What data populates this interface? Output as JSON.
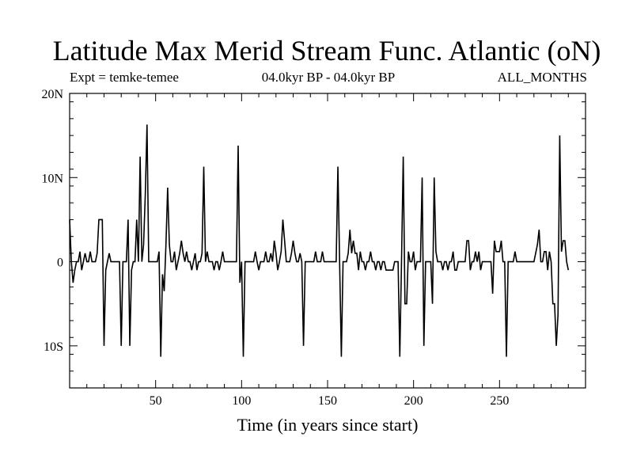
{
  "chart_data": {
    "type": "line",
    "title": "Latitude Max Merid Stream Func. Atlantic (oN)",
    "subtitle_left": "Expt = temke-temee",
    "subtitle_center": "04.0kyr BP - 04.0kyr BP",
    "subtitle_right": "ALL_MONTHS",
    "xlabel": "Time (in years since start)",
    "ylabel": "",
    "xlim": [
      0,
      300
    ],
    "ylim": [
      -15,
      20
    ],
    "grid": false,
    "x_ticks": [
      {
        "value": 50,
        "label": "50"
      },
      {
        "value": 100,
        "label": "100"
      },
      {
        "value": 150,
        "label": "150"
      },
      {
        "value": 200,
        "label": "200"
      },
      {
        "value": 250,
        "label": "250"
      }
    ],
    "y_ticks": [
      {
        "value": 20,
        "label": "20N"
      },
      {
        "value": 10,
        "label": "10N"
      },
      {
        "value": 0,
        "label": "0"
      },
      {
        "value": -10,
        "label": "10S"
      }
    ],
    "series": [
      {
        "name": "Latitude Max Merid Stream Func",
        "points": [
          [
            0,
            5
          ],
          [
            1,
            0
          ],
          [
            2,
            -2.5
          ],
          [
            3,
            -1
          ],
          [
            4,
            0
          ],
          [
            5,
            0
          ],
          [
            6,
            1.2
          ],
          [
            7,
            -1
          ],
          [
            8,
            0
          ],
          [
            9,
            1
          ],
          [
            10,
            0
          ],
          [
            11,
            0
          ],
          [
            12,
            1.2
          ],
          [
            13,
            0
          ],
          [
            14,
            0
          ],
          [
            15,
            0
          ],
          [
            16,
            1
          ],
          [
            17,
            5
          ],
          [
            18,
            5
          ],
          [
            19,
            5
          ],
          [
            20,
            -10
          ],
          [
            21,
            -1
          ],
          [
            22,
            0
          ],
          [
            23,
            1
          ],
          [
            24,
            0
          ],
          [
            25,
            0
          ],
          [
            26,
            0
          ],
          [
            27,
            0
          ],
          [
            28,
            0
          ],
          [
            29,
            0
          ],
          [
            30,
            -10
          ],
          [
            31,
            0
          ],
          [
            32,
            0
          ],
          [
            33,
            0
          ],
          [
            34,
            5
          ],
          [
            35,
            -10
          ],
          [
            36,
            -1
          ],
          [
            37,
            0
          ],
          [
            38,
            0
          ],
          [
            39,
            5
          ],
          [
            40,
            0
          ],
          [
            41,
            12.5
          ],
          [
            42,
            0
          ],
          [
            43,
            2
          ],
          [
            44,
            8
          ],
          [
            45,
            16.3
          ],
          [
            46,
            0
          ],
          [
            47,
            0
          ],
          [
            48,
            0
          ],
          [
            49,
            0
          ],
          [
            50,
            0
          ],
          [
            51,
            0
          ],
          [
            52,
            1.2
          ],
          [
            53,
            -11.3
          ],
          [
            54,
            -1.5
          ],
          [
            55,
            -3.5
          ],
          [
            56,
            2
          ],
          [
            57,
            8.8
          ],
          [
            58,
            2
          ],
          [
            59,
            0
          ],
          [
            60,
            0
          ],
          [
            61,
            1.2
          ],
          [
            62,
            -1
          ],
          [
            63,
            0
          ],
          [
            64,
            1
          ],
          [
            65,
            2.5
          ],
          [
            66,
            1
          ],
          [
            67,
            0
          ],
          [
            68,
            1.2
          ],
          [
            69,
            0
          ],
          [
            70,
            0
          ],
          [
            71,
            -1
          ],
          [
            72,
            0
          ],
          [
            73,
            1
          ],
          [
            74,
            -1
          ],
          [
            75,
            0
          ],
          [
            76,
            0
          ],
          [
            77,
            1
          ],
          [
            78,
            11.3
          ],
          [
            79,
            0
          ],
          [
            80,
            1.2
          ],
          [
            81,
            0
          ],
          [
            82,
            0
          ],
          [
            83,
            0
          ],
          [
            84,
            -1
          ],
          [
            85,
            0
          ],
          [
            86,
            0
          ],
          [
            87,
            -1
          ],
          [
            88,
            0
          ],
          [
            89,
            1.2
          ],
          [
            90,
            0
          ],
          [
            91,
            0
          ],
          [
            92,
            0
          ],
          [
            93,
            0
          ],
          [
            94,
            0
          ],
          [
            95,
            0
          ],
          [
            96,
            0
          ],
          [
            97,
            0
          ],
          [
            98,
            13.8
          ],
          [
            99,
            -2.5
          ],
          [
            100,
            0
          ],
          [
            101,
            -11.3
          ],
          [
            102,
            0
          ],
          [
            103,
            0
          ],
          [
            104,
            0
          ],
          [
            105,
            0
          ],
          [
            106,
            0
          ],
          [
            107,
            0
          ],
          [
            108,
            1.2
          ],
          [
            109,
            0
          ],
          [
            110,
            -1
          ],
          [
            111,
            0
          ],
          [
            112,
            0
          ],
          [
            113,
            0
          ],
          [
            114,
            1.2
          ],
          [
            115,
            0
          ],
          [
            116,
            0
          ],
          [
            117,
            1
          ],
          [
            118,
            0
          ],
          [
            119,
            2.5
          ],
          [
            120,
            1
          ],
          [
            121,
            -1
          ],
          [
            122,
            0
          ],
          [
            123,
            1.2
          ],
          [
            124,
            5
          ],
          [
            125,
            2.5
          ],
          [
            126,
            0
          ],
          [
            127,
            0
          ],
          [
            128,
            0
          ],
          [
            129,
            1
          ],
          [
            130,
            2.5
          ],
          [
            131,
            1
          ],
          [
            132,
            0
          ],
          [
            133,
            0
          ],
          [
            134,
            1
          ],
          [
            135,
            0
          ],
          [
            136,
            -10
          ],
          [
            137,
            0
          ],
          [
            138,
            0
          ],
          [
            139,
            0
          ],
          [
            140,
            0
          ],
          [
            141,
            0
          ],
          [
            142,
            0
          ],
          [
            143,
            1.2
          ],
          [
            144,
            0
          ],
          [
            145,
            0
          ],
          [
            146,
            0
          ],
          [
            147,
            1.2
          ],
          [
            148,
            0
          ],
          [
            149,
            0
          ],
          [
            150,
            0
          ],
          [
            151,
            0
          ],
          [
            152,
            0
          ],
          [
            153,
            0
          ],
          [
            154,
            0
          ],
          [
            155,
            0
          ],
          [
            156,
            11.3
          ],
          [
            157,
            0
          ],
          [
            158,
            -11.3
          ],
          [
            159,
            0
          ],
          [
            160,
            0
          ],
          [
            161,
            0
          ],
          [
            162,
            1
          ],
          [
            163,
            3.8
          ],
          [
            164,
            1
          ],
          [
            165,
            2.5
          ],
          [
            166,
            1
          ],
          [
            167,
            1
          ],
          [
            168,
            -1
          ],
          [
            169,
            1.2
          ],
          [
            170,
            0
          ],
          [
            171,
            0
          ],
          [
            172,
            -1
          ],
          [
            173,
            0
          ],
          [
            174,
            0
          ],
          [
            175,
            1.2
          ],
          [
            176,
            0
          ],
          [
            177,
            0
          ],
          [
            178,
            -1
          ],
          [
            179,
            0
          ],
          [
            180,
            0
          ],
          [
            181,
            -1
          ],
          [
            182,
            0
          ],
          [
            183,
            0
          ],
          [
            184,
            -1
          ],
          [
            185,
            -1
          ],
          [
            186,
            -1
          ],
          [
            187,
            -1
          ],
          [
            188,
            -1
          ],
          [
            189,
            0
          ],
          [
            190,
            0
          ],
          [
            191,
            0
          ],
          [
            192,
            -11.3
          ],
          [
            193,
            0
          ],
          [
            194,
            12.5
          ],
          [
            195,
            -5
          ],
          [
            196,
            -5
          ],
          [
            197,
            1.2
          ],
          [
            198,
            0
          ],
          [
            199,
            0
          ],
          [
            200,
            1.2
          ],
          [
            201,
            -1
          ],
          [
            202,
            0
          ],
          [
            203,
            0
          ],
          [
            204,
            0
          ],
          [
            205,
            10
          ],
          [
            206,
            -10
          ],
          [
            207,
            0
          ],
          [
            208,
            0
          ],
          [
            209,
            0
          ],
          [
            210,
            0
          ],
          [
            211,
            -5
          ],
          [
            212,
            10
          ],
          [
            213,
            1.2
          ],
          [
            214,
            0
          ],
          [
            215,
            0
          ],
          [
            216,
            0
          ],
          [
            217,
            -1
          ],
          [
            218,
            0
          ],
          [
            219,
            0
          ],
          [
            220,
            -1
          ],
          [
            221,
            0
          ],
          [
            222,
            0
          ],
          [
            223,
            1.2
          ],
          [
            224,
            -1
          ],
          [
            225,
            -1
          ],
          [
            226,
            0
          ],
          [
            227,
            0
          ],
          [
            228,
            0
          ],
          [
            229,
            0
          ],
          [
            230,
            0
          ],
          [
            231,
            2.5
          ],
          [
            232,
            2.5
          ],
          [
            233,
            -1
          ],
          [
            234,
            0
          ],
          [
            235,
            0
          ],
          [
            236,
            1.2
          ],
          [
            237,
            0
          ],
          [
            238,
            1.2
          ],
          [
            239,
            -1
          ],
          [
            240,
            0
          ],
          [
            241,
            0
          ],
          [
            242,
            0
          ],
          [
            243,
            0
          ],
          [
            244,
            0
          ],
          [
            245,
            0
          ],
          [
            246,
            -3.8
          ],
          [
            247,
            2.5
          ],
          [
            248,
            1.2
          ],
          [
            249,
            1.2
          ],
          [
            250,
            1.2
          ],
          [
            251,
            2.5
          ],
          [
            252,
            0
          ],
          [
            253,
            0
          ],
          [
            254,
            -11.3
          ],
          [
            255,
            0
          ],
          [
            256,
            0
          ],
          [
            257,
            0
          ],
          [
            258,
            0
          ],
          [
            259,
            1.2
          ],
          [
            260,
            0
          ],
          [
            261,
            0
          ],
          [
            262,
            0
          ],
          [
            263,
            0
          ],
          [
            264,
            0
          ],
          [
            265,
            0
          ],
          [
            266,
            0
          ],
          [
            267,
            0
          ],
          [
            268,
            0
          ],
          [
            269,
            0
          ],
          [
            270,
            0
          ],
          [
            271,
            1
          ],
          [
            272,
            2
          ],
          [
            273,
            3.8
          ],
          [
            274,
            0
          ],
          [
            275,
            0
          ],
          [
            276,
            1.2
          ],
          [
            277,
            1.2
          ],
          [
            278,
            -1
          ],
          [
            279,
            1.2
          ],
          [
            280,
            0
          ],
          [
            281,
            -5
          ],
          [
            282,
            -5
          ],
          [
            283,
            -10
          ],
          [
            284,
            -6.3
          ],
          [
            285,
            15
          ],
          [
            286,
            1.2
          ],
          [
            287,
            2.5
          ],
          [
            288,
            2.5
          ],
          [
            289,
            0
          ],
          [
            290,
            -1
          ]
        ]
      }
    ]
  }
}
